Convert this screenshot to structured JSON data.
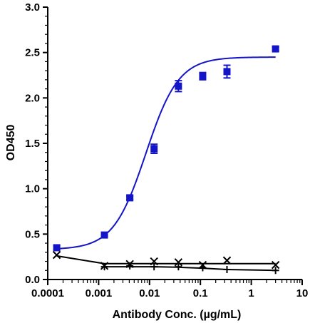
{
  "chart_data": {
    "type": "scatter",
    "title": "",
    "xlabel": "Antibody Conc. (µg/mL)",
    "ylabel": "OD450",
    "xscale": "log",
    "xlim": [
      0.0001,
      10
    ],
    "ylim": [
      0,
      3.0
    ],
    "x_ticks": [
      "0.0001",
      "0.001",
      "0.01",
      "0.1",
      "1",
      "10"
    ],
    "y_ticks": [
      "0.0",
      "0.5",
      "1.0",
      "1.5",
      "2.0",
      "2.5",
      "3.0"
    ],
    "grid": false,
    "series": [
      {
        "marker": "square",
        "color": "#1414c8",
        "x": [
          0.00015,
          0.0013,
          0.0041,
          0.0123,
          0.037,
          0.111,
          0.333,
          3.0
        ],
        "y": [
          0.35,
          0.49,
          0.9,
          1.44,
          2.13,
          2.24,
          2.29,
          2.54
        ],
        "error": [
          0.02,
          0.01,
          0.02,
          0.05,
          0.06,
          0.04,
          0.07,
          0.02
        ],
        "fit": {
          "bottom": 0.33,
          "top": 2.45,
          "ec50": 0.0085,
          "hill": 1.35
        }
      },
      {
        "marker": "cross",
        "color": "#000000",
        "x": [
          0.00015,
          0.0013,
          0.0041,
          0.0123,
          0.037,
          0.111,
          0.333,
          3.0
        ],
        "y": [
          0.27,
          0.15,
          0.17,
          0.2,
          0.19,
          0.16,
          0.21,
          0.16
        ],
        "fit_y": [
          0.26,
          0.175,
          0.175,
          0.175,
          0.175,
          0.175,
          0.175,
          0.175
        ]
      },
      {
        "marker": "plus",
        "color": "#000000",
        "x": [
          0.0013,
          0.0041,
          0.0123,
          0.037,
          0.111,
          0.333,
          3.0
        ],
        "y": [
          0.14,
          0.15,
          0.14,
          0.14,
          0.13,
          0.11,
          0.1
        ],
        "fit_y": [
          0.14,
          0.14,
          0.14,
          0.135,
          0.125,
          0.11,
          0.1
        ]
      }
    ]
  }
}
